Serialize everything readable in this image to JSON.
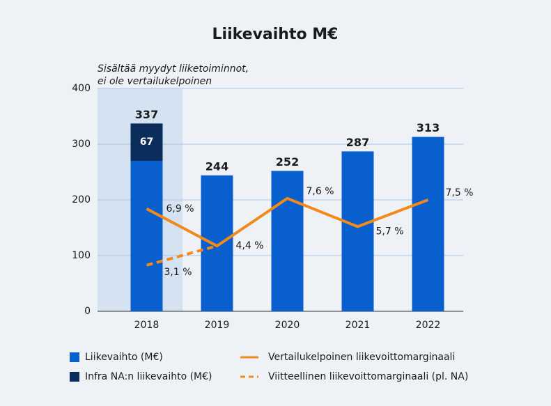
{
  "chart_data": {
    "type": "bar",
    "title": "Liikevaihto M€",
    "annotation": [
      "Sisältää myydyt liiketoiminnot,",
      "ei ole vertailukelpoinen"
    ],
    "categories": [
      "2018",
      "2019",
      "2020",
      "2021",
      "2022"
    ],
    "ylim": [
      0,
      400
    ],
    "yticks": [
      0,
      100,
      200,
      300,
      400
    ],
    "grid": true,
    "y2lim": [
      0,
      15
    ],
    "series": [
      {
        "name": "Liikevaihto (M€)",
        "type": "bar",
        "color": "#0a5fcf",
        "values": [
          337,
          244,
          252,
          287,
          313
        ]
      },
      {
        "name": "Infra NA:n liikevaihto (M€)",
        "type": "bar",
        "color": "#0b2d5c",
        "values": [
          67,
          null,
          null,
          null,
          null
        ]
      },
      {
        "name": "Vertailukelpoinen liikevoittomarginaali",
        "type": "line",
        "axis": "y2",
        "color": "#f28a1a",
        "values": [
          6.9,
          4.4,
          7.6,
          5.7,
          7.5
        ],
        "value_labels": [
          "6,9 %",
          "4,4 %",
          "7,6 %",
          "5,7 %",
          "7,5 %"
        ]
      },
      {
        "name": "Viitteellinen liikevoittomarginaali (pl. NA)",
        "type": "line",
        "axis": "y2",
        "dashed": true,
        "color": "#f28a1a",
        "values": [
          3.1,
          4.4,
          null,
          null,
          null
        ],
        "value_labels": [
          "3,1 %",
          null,
          null,
          null,
          null
        ]
      }
    ]
  }
}
